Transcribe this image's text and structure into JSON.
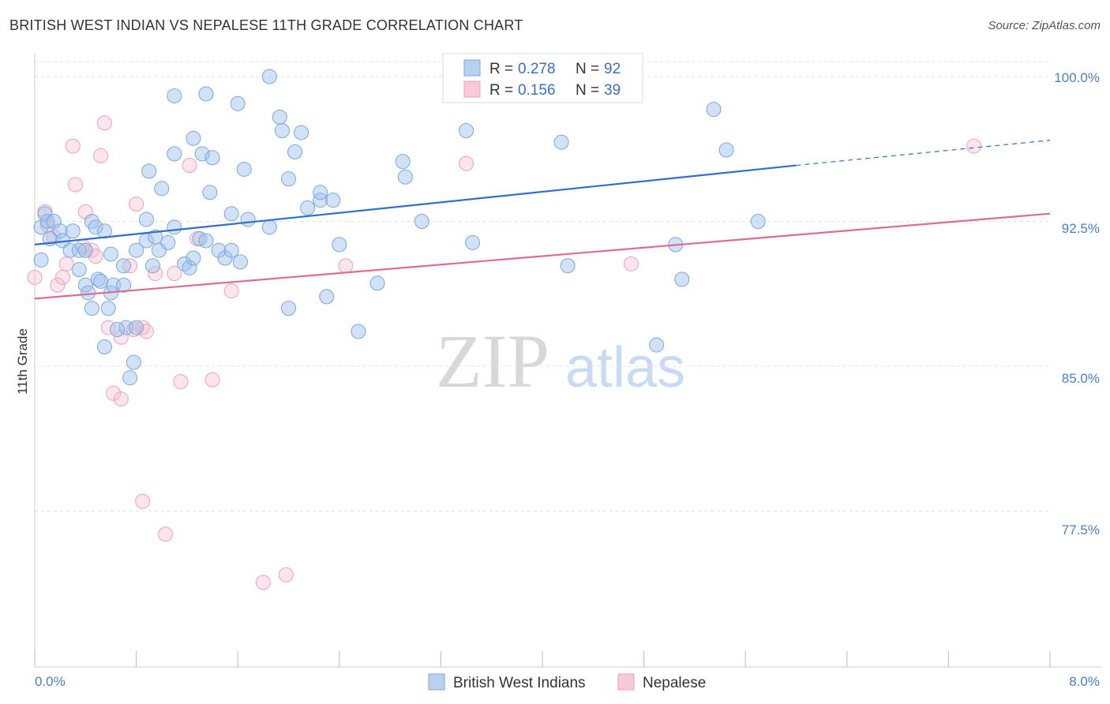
{
  "title": "BRITISH WEST INDIAN VS NEPALESE 11TH GRADE CORRELATION CHART",
  "source": "Source: ZipAtlas.com",
  "watermark": {
    "zip": "ZIP",
    "atlas": "atlas"
  },
  "legend": {
    "r_label": "R =",
    "n_label": "N =",
    "entries": [
      {
        "r": "0.278",
        "n": "92"
      },
      {
        "r": "0.156",
        "n": "39"
      }
    ]
  },
  "chart_data": {
    "type": "scatter",
    "title": "BRITISH WEST INDIAN VS NEPALESE 11TH GRADE CORRELATION CHART",
    "xlabel": "",
    "ylabel": "11th Grade",
    "xlim": [
      0.0,
      8.0
    ],
    "ylim": [
      71.0,
      101.0
    ],
    "x_tick_labels": [
      "0.0%",
      "8.0%"
    ],
    "y_ticks": [
      77.5,
      85.0,
      92.5,
      100.0
    ],
    "y_tick_labels": [
      "77.5%",
      "85.0%",
      "92.5%",
      "100.0%"
    ],
    "grid": true,
    "legend_position": "top-center",
    "colors": {
      "British West Indians": "#7aa7e0",
      "Nepalese": "#f0a0b8",
      "blue_line": "#2f6fd0",
      "pink_line": "#e06a95"
    },
    "series": [
      {
        "name": "British West Indians",
        "trend": {
          "x": [
            0.0,
            6.0
          ],
          "y": [
            91.3,
            95.4
          ],
          "dashed_to_x": 8.0,
          "dashed_to_y": 96.7
        },
        "points": [
          [
            0.05,
            92.2
          ],
          [
            0.08,
            92.9
          ],
          [
            0.1,
            92.5
          ],
          [
            0.15,
            92.5
          ],
          [
            0.2,
            92.0
          ],
          [
            0.22,
            91.5
          ],
          [
            0.3,
            92.0
          ],
          [
            0.28,
            91.0
          ],
          [
            0.35,
            91.0
          ],
          [
            0.4,
            91.0
          ],
          [
            0.45,
            92.5
          ],
          [
            0.48,
            92.2
          ],
          [
            0.55,
            92.0
          ],
          [
            0.6,
            90.8
          ],
          [
            0.7,
            90.2
          ],
          [
            0.35,
            90.0
          ],
          [
            0.4,
            89.2
          ],
          [
            0.42,
            88.8
          ],
          [
            0.5,
            89.5
          ],
          [
            0.52,
            89.4
          ],
          [
            0.6,
            88.8
          ],
          [
            0.62,
            89.2
          ],
          [
            0.7,
            89.2
          ],
          [
            0.58,
            88.0
          ],
          [
            0.55,
            86.0
          ],
          [
            0.72,
            87.0
          ],
          [
            0.8,
            87.0
          ],
          [
            0.78,
            85.2
          ],
          [
            0.75,
            84.4
          ],
          [
            0.65,
            86.9
          ],
          [
            0.8,
            91.0
          ],
          [
            0.88,
            91.5
          ],
          [
            0.95,
            91.7
          ],
          [
            0.98,
            91.0
          ],
          [
            0.93,
            90.2
          ],
          [
            0.88,
            92.6
          ],
          [
            1.05,
            91.4
          ],
          [
            1.1,
            92.2
          ],
          [
            1.18,
            90.3
          ],
          [
            1.22,
            90.1
          ],
          [
            1.25,
            90.6
          ],
          [
            1.3,
            91.6
          ],
          [
            1.35,
            91.5
          ],
          [
            1.45,
            91.0
          ],
          [
            1.5,
            90.6
          ],
          [
            1.55,
            91.0
          ],
          [
            1.62,
            90.4
          ],
          [
            1.55,
            92.9
          ],
          [
            1.68,
            92.6
          ],
          [
            1.85,
            92.2
          ],
          [
            0.9,
            95.1
          ],
          [
            1.0,
            94.2
          ],
          [
            1.1,
            96.0
          ],
          [
            1.25,
            96.8
          ],
          [
            1.32,
            96.0
          ],
          [
            1.4,
            95.8
          ],
          [
            1.38,
            94.0
          ],
          [
            1.65,
            95.2
          ],
          [
            1.1,
            99.0
          ],
          [
            1.35,
            99.1
          ],
          [
            1.6,
            98.6
          ],
          [
            1.85,
            100.0
          ],
          [
            1.93,
            97.9
          ],
          [
            1.95,
            97.2
          ],
          [
            2.05,
            96.1
          ],
          [
            2.1,
            97.1
          ],
          [
            2.0,
            94.7
          ],
          [
            2.15,
            93.2
          ],
          [
            2.25,
            93.6
          ],
          [
            2.25,
            94.0
          ],
          [
            2.35,
            93.6
          ],
          [
            2.4,
            91.3
          ],
          [
            2.3,
            88.6
          ],
          [
            2.0,
            88.0
          ],
          [
            2.55,
            86.8
          ],
          [
            2.7,
            89.3
          ],
          [
            2.9,
            95.6
          ],
          [
            2.92,
            94.8
          ],
          [
            3.05,
            92.5
          ],
          [
            3.4,
            97.2
          ],
          [
            3.45,
            91.4
          ],
          [
            4.15,
            96.6
          ],
          [
            4.2,
            90.2
          ],
          [
            4.9,
            86.1
          ],
          [
            5.05,
            91.3
          ],
          [
            5.1,
            89.5
          ],
          [
            5.35,
            98.3
          ],
          [
            5.45,
            96.2
          ],
          [
            5.7,
            92.5
          ],
          [
            0.05,
            90.5
          ],
          [
            0.12,
            91.6
          ],
          [
            0.45,
            88.0
          ]
        ]
      },
      {
        "name": "Nepalese",
        "trend": {
          "x": [
            0.0,
            8.0
          ],
          "y": [
            88.5,
            92.9
          ]
        },
        "points": [
          [
            0.0,
            89.6
          ],
          [
            0.08,
            93.0
          ],
          [
            0.1,
            92.3
          ],
          [
            0.15,
            91.7
          ],
          [
            0.18,
            89.2
          ],
          [
            0.22,
            89.6
          ],
          [
            0.25,
            90.3
          ],
          [
            0.3,
            96.4
          ],
          [
            0.32,
            94.4
          ],
          [
            0.4,
            93.0
          ],
          [
            0.45,
            91.0
          ],
          [
            0.48,
            90.7
          ],
          [
            0.38,
            91.2
          ],
          [
            0.52,
            95.9
          ],
          [
            0.55,
            97.6
          ],
          [
            0.58,
            87.0
          ],
          [
            0.62,
            83.6
          ],
          [
            0.68,
            83.3
          ],
          [
            0.68,
            86.5
          ],
          [
            0.75,
            90.2
          ],
          [
            0.78,
            86.9
          ],
          [
            0.8,
            93.4
          ],
          [
            0.85,
            87.0
          ],
          [
            0.88,
            86.8
          ],
          [
            0.95,
            89.8
          ],
          [
            0.85,
            78.0
          ],
          [
            1.03,
            76.3
          ],
          [
            1.1,
            89.8
          ],
          [
            1.15,
            84.2
          ],
          [
            1.22,
            95.4
          ],
          [
            1.28,
            91.6
          ],
          [
            1.4,
            84.3
          ],
          [
            1.55,
            88.9
          ],
          [
            1.8,
            73.8
          ],
          [
            1.98,
            74.2
          ],
          [
            2.45,
            90.2
          ],
          [
            3.4,
            95.5
          ],
          [
            4.7,
            90.3
          ],
          [
            7.4,
            96.4
          ]
        ]
      }
    ]
  }
}
